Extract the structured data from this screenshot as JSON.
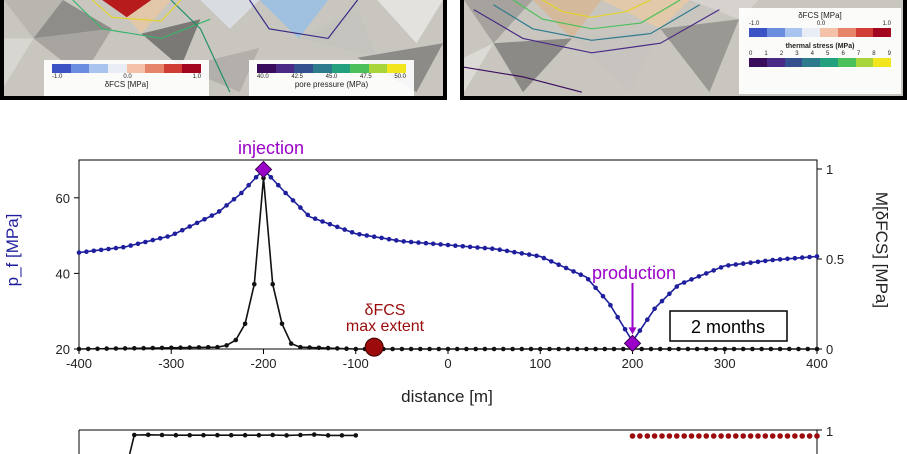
{
  "left_panel": {
    "legend_dfcs": {
      "label": "δFCS [MPa]",
      "ticks": [
        "-1.0",
        "0.0",
        "1.0"
      ],
      "colors": [
        "#3b53c4",
        "#6b8de0",
        "#a9c4ef",
        "#e9eef6",
        "#f3c2a8",
        "#e6846a",
        "#cf3d35",
        "#a3071f"
      ]
    },
    "legend_pressure": {
      "label": "pore pressure (MPa)",
      "ticks": [
        "40.0",
        "42.5",
        "45.0",
        "47.5",
        "50.0"
      ],
      "colors": [
        "#3a0d5c",
        "#4a2a86",
        "#35508f",
        "#2c7a8c",
        "#23a07e",
        "#4cc05a",
        "#a8d63a",
        "#f1e51d"
      ]
    }
  },
  "right_panel": {
    "legend_dfcs": {
      "label": "δFCS [MPa]",
      "ticks": [
        "-1.0",
        "0.0",
        "1.0"
      ],
      "colors": [
        "#3b53c4",
        "#6b8de0",
        "#a9c4ef",
        "#e9eef6",
        "#f3c2a8",
        "#e6846a",
        "#cf3d35",
        "#a3071f"
      ]
    },
    "legend_thermal": {
      "label": "thermal stress (MPa)",
      "ticks": [
        "0",
        "1",
        "2",
        "3",
        "4",
        "5",
        "6",
        "7",
        "8",
        "9"
      ],
      "colors": [
        "#3a0d5c",
        "#4a2a86",
        "#35508f",
        "#2c7a8c",
        "#23a07e",
        "#4cc05a",
        "#a8d63a",
        "#f1e51d"
      ]
    }
  },
  "chart_data": {
    "type": "line",
    "xlabel": "distance [m]",
    "ylabel_left": "p_f [MPa]",
    "ylabel_right": "M[δFCS] [MPa]",
    "xlim": [
      -400,
      400
    ],
    "ylim_left": [
      20,
      70
    ],
    "ylim_right": [
      0,
      1.05
    ],
    "x_ticks": [
      "-400",
      "-300",
      "-200",
      "-100",
      "0",
      "100",
      "200",
      "300",
      "400"
    ],
    "y_ticks_left": [
      "20",
      "40",
      "60"
    ],
    "y_ticks_right": [
      "0",
      "0.5",
      "1"
    ],
    "series": [
      {
        "axis": "left",
        "color": "#1f1f9e",
        "x": [
          -400,
          -350,
          -300,
          -250,
          -225,
          -200,
          -175,
          -150,
          -100,
          -50,
          0,
          50,
          100,
          150,
          175,
          200,
          225,
          250,
          300,
          350,
          400
        ],
        "y": [
          45.5,
          47,
          50,
          56,
          61,
          67.5,
          61,
          55,
          50.5,
          48.5,
          47.5,
          46.5,
          44.5,
          39,
          32,
          22,
          31,
          37,
          42,
          43.5,
          44.5
        ]
      },
      {
        "axis": "right",
        "color": "#111111",
        "x": [
          -400,
          -250,
          -240,
          -230,
          -220,
          -210,
          -200,
          -190,
          -180,
          -170,
          -160,
          -100,
          -50,
          0,
          100,
          200,
          300,
          400
        ],
        "y": [
          0,
          0.01,
          0.02,
          0.05,
          0.14,
          0.36,
          0.95,
          0.36,
          0.14,
          0.03,
          0.01,
          0,
          0,
          0,
          0,
          0,
          0,
          0
        ]
      }
    ],
    "markers": [
      {
        "name": "injection",
        "x": -200,
        "y": 67.5,
        "color": "#9a00c8"
      },
      {
        "name": "production",
        "x": 200,
        "y": 21.5,
        "color": "#9a00c8"
      },
      {
        "name": "δFCS max extent",
        "x": -80,
        "y": 20.5,
        "color": "#9b0b0b"
      }
    ],
    "annotations": {
      "injection": "injection",
      "production": "production",
      "dfcs_line1": "δFCS",
      "dfcs_line2": "max extent",
      "time": "2 months"
    },
    "lower_chart": {
      "right_ticks": [
        "1"
      ],
      "black_y": [
        0.95,
        0.96,
        0.95,
        0.94,
        0.94,
        0.94,
        0.94,
        0.94,
        0.94,
        0.94,
        0.95,
        0.93,
        0.95,
        0.97,
        0.93,
        0.93,
        0.93
      ],
      "red_level": 0.9
    }
  }
}
